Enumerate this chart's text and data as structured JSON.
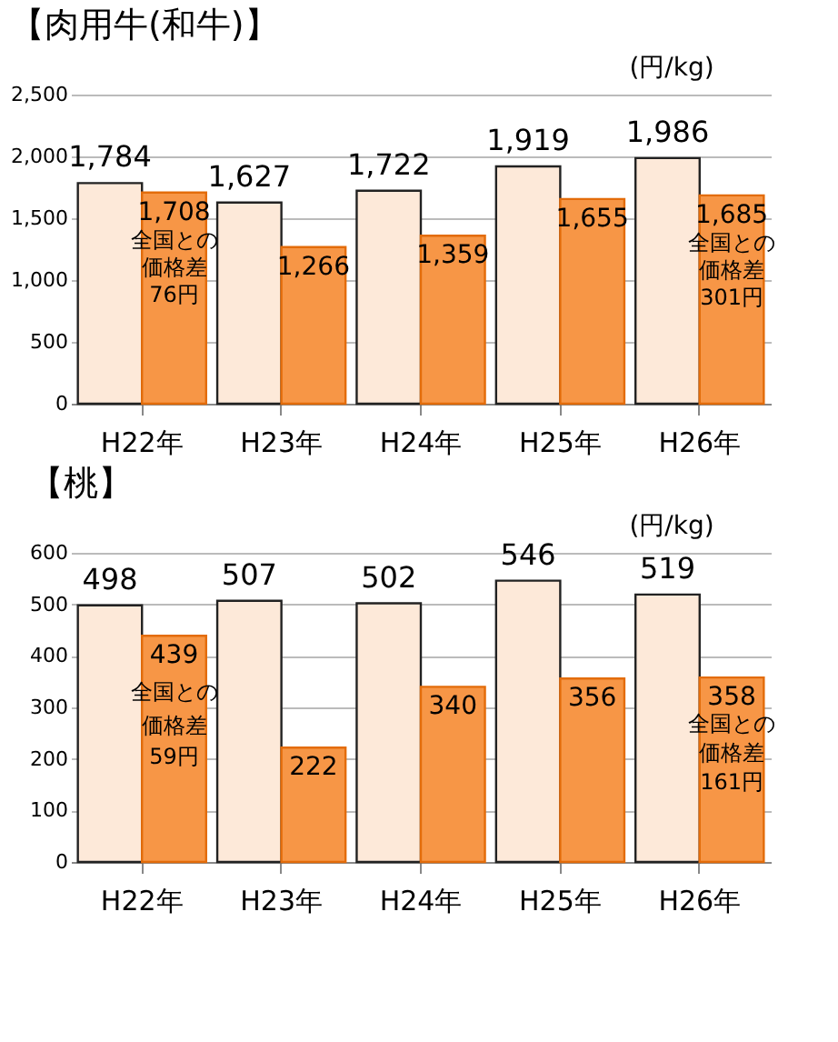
{
  "chart_data": [
    {
      "type": "bar",
      "title": "【肉用牛(和牛)】",
      "ylabel": "(円/kg)",
      "categories": [
        "H22年",
        "H23年",
        "H24年",
        "H25年",
        "H26年"
      ],
      "series": [
        {
          "color": "#fde9d9",
          "values": [
            1784,
            1627,
            1722,
            1919,
            1986
          ],
          "value_labels": [
            "1,784",
            "1,627",
            "1,722",
            "1,919",
            "1,986"
          ]
        },
        {
          "color": "#f79646",
          "values": [
            1708,
            1266,
            1359,
            1655,
            1685
          ],
          "value_labels": [
            "1,708",
            "1,266",
            "1,359",
            "1,655",
            "1,685"
          ]
        }
      ],
      "ylim": [
        0,
        2500
      ],
      "yticks": [
        0,
        {
          "value": 500,
          "label": "500"
        },
        {
          "value": 1000,
          "label": "1,000"
        },
        {
          "value": 1500,
          "label": "1,500"
        },
        {
          "value": 2000,
          "label": "2,000"
        },
        {
          "value": 2500,
          "label": "2,500"
        }
      ],
      "grid": "y",
      "legend": false,
      "annotations": [
        {
          "text": "全国との",
          "x": "H22年",
          "y": 1320
        },
        {
          "text": "価格差",
          "x": "H22年",
          "y": 1100
        },
        {
          "text": "76円",
          "x": "H22年",
          "y": 880
        },
        {
          "text": "全国との",
          "x": "H26年",
          "y": 1300
        },
        {
          "text": "価格差",
          "x": "H26年",
          "y": 1080
        },
        {
          "text": "301円",
          "x": "H26年",
          "y": 860
        }
      ]
    },
    {
      "type": "bar",
      "title": "【桃】",
      "ylabel": "(円/kg)",
      "categories": [
        "H22年",
        "H23年",
        "H24年",
        "H25年",
        "H26年"
      ],
      "series": [
        {
          "color": "#fde9d9",
          "values": [
            498,
            507,
            502,
            546,
            519
          ],
          "value_labels": [
            "498",
            "507",
            "502",
            "546",
            "519"
          ]
        },
        {
          "color": "#f79646",
          "values": [
            439,
            222,
            340,
            356,
            358
          ],
          "value_labels": [
            "439",
            "222",
            "340",
            "356",
            "358"
          ]
        }
      ],
      "ylim": [
        0,
        600
      ],
      "yticks": [
        0,
        100,
        200,
        300,
        400,
        500,
        600
      ],
      "grid": "y",
      "legend": false,
      "annotations": [
        {
          "text": "全国との",
          "x": "H22年",
          "y": 330
        },
        {
          "text": "価格差",
          "x": "H22年",
          "y": 265
        },
        {
          "text": "59円",
          "x": "H22年",
          "y": 205
        },
        {
          "text": "全国との",
          "x": "H26年",
          "y": 268
        },
        {
          "text": "価格差",
          "x": "H26年",
          "y": 212
        },
        {
          "text": "161円",
          "x": "H26年",
          "y": 156
        }
      ]
    }
  ]
}
